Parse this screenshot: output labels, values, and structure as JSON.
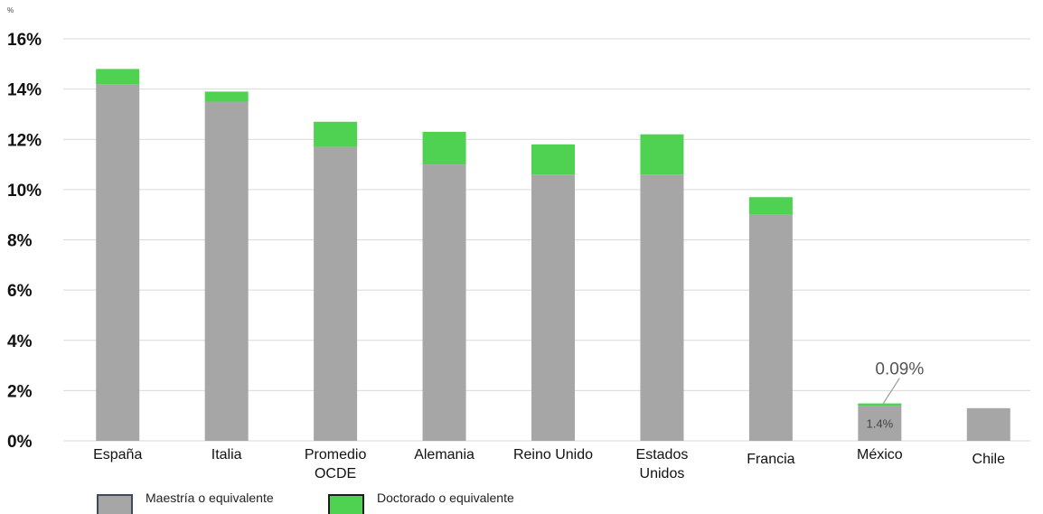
{
  "chart_data": {
    "type": "bar",
    "stacked": true,
    "unit_label": "%",
    "categories": [
      [
        "España"
      ],
      [
        "Italia"
      ],
      [
        "Promedio",
        "OCDE"
      ],
      [
        "Alemania"
      ],
      [
        "Reino Unido"
      ],
      [
        "Estados",
        "Unidos"
      ],
      [
        "Francia"
      ],
      [
        "México"
      ],
      [
        "Chile"
      ]
    ],
    "series": [
      {
        "name": "Maestría o equivalente",
        "color": "#a6a6a6",
        "values": [
          14.2,
          13.5,
          11.7,
          11.0,
          10.6,
          10.6,
          9.0,
          1.4,
          1.3
        ]
      },
      {
        "name": "Doctorado o equivalente",
        "color": "#4fd152",
        "values": [
          0.6,
          0.4,
          1.0,
          1.3,
          1.2,
          1.6,
          0.7,
          0.09,
          0
        ]
      }
    ],
    "ylim": [
      0,
      16
    ],
    "yticks": [
      0,
      2,
      4,
      6,
      8,
      10,
      12,
      14,
      16
    ],
    "ytick_labels": [
      "0%",
      "2%",
      "4%",
      "6%",
      "8%",
      "10%",
      "12%",
      "14%",
      "16%"
    ],
    "grid": true,
    "annotations": [
      {
        "text": "0.09%",
        "category": "México",
        "series": "Doctorado o equivalente"
      },
      {
        "text": "1.4%",
        "category": "México",
        "series": "Maestría o equivalente"
      }
    ],
    "legend": {
      "position": "bottom-left",
      "items": [
        "Maestría o equivalente",
        "Doctorado o equivalente"
      ]
    }
  }
}
